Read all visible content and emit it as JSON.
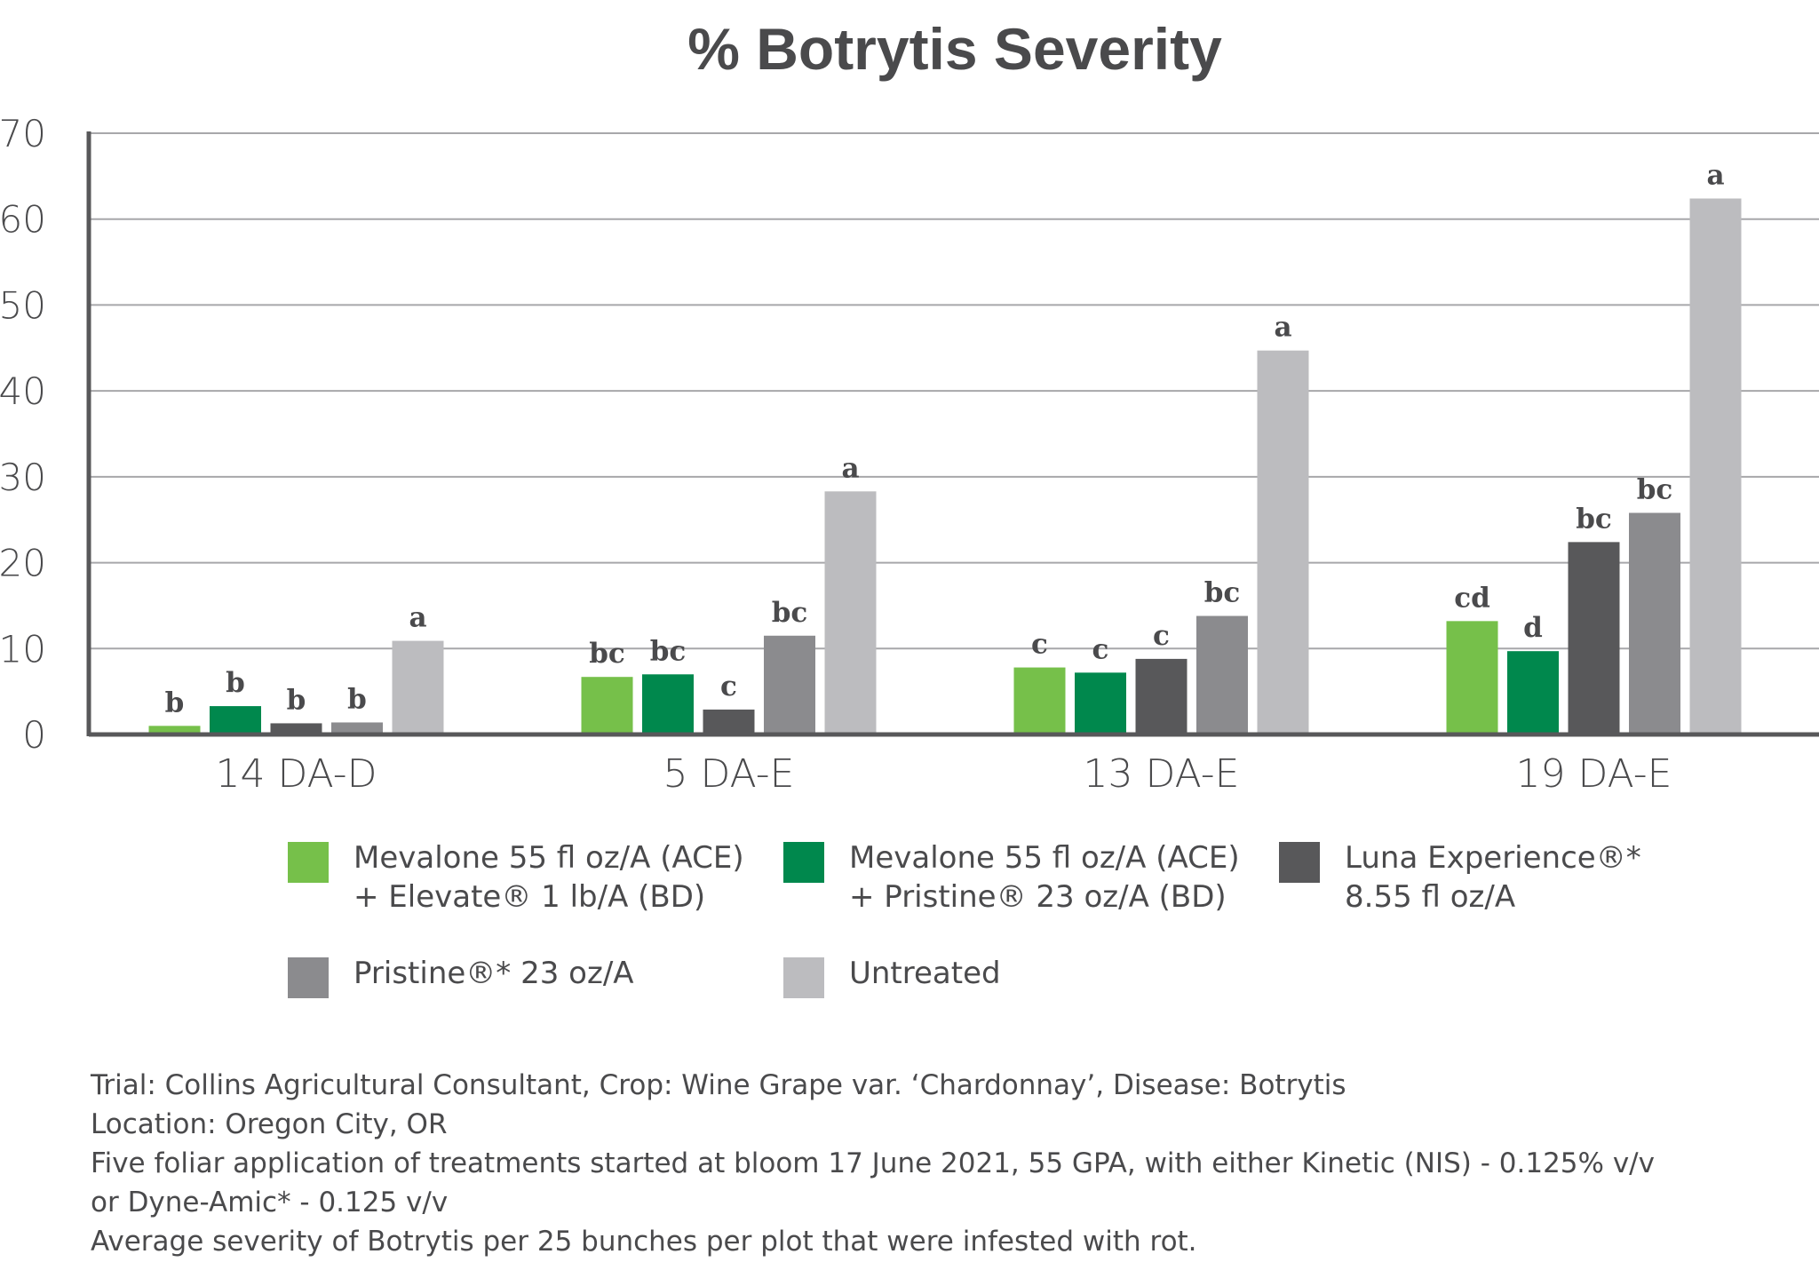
{
  "chart_data": {
    "type": "bar",
    "title": "% Botrytis Severity",
    "xlabel": "",
    "ylabel": "",
    "ylim": [
      0,
      70
    ],
    "yticks": [
      0,
      10,
      20,
      30,
      40,
      50,
      60,
      70
    ],
    "grid": true,
    "legend_position": "bottom",
    "categories": [
      "14 DA-D",
      "5 DA-E",
      "13 DA-E",
      "19 DA-E"
    ],
    "series": [
      {
        "name": "Mevalone 55 fl oz/A (ACE) + Elevate® 1 lb/A (BD)",
        "legend_lines": [
          "Mevalone 55 fl oz/A (ACE)",
          "+ Elevate® 1 lb/A (BD)"
        ],
        "color": "#76c04a",
        "values": [
          1.0,
          6.7,
          7.8,
          13.2
        ],
        "labels": [
          "b",
          "bc",
          "c",
          "cd"
        ]
      },
      {
        "name": "Mevalone 55 fl oz/A (ACE) + Pristine® 23 oz/A (BD)",
        "legend_lines": [
          "Mevalone 55 fl oz/A (ACE)",
          "+ Pristine® 23 oz/A (BD)"
        ],
        "color": "#00884d",
        "values": [
          3.3,
          7.0,
          7.2,
          9.7
        ],
        "labels": [
          "b",
          "bc",
          "c",
          "d"
        ]
      },
      {
        "name": "Luna Experience®* 8.55 fl oz/A",
        "legend_lines": [
          "Luna Experience®*",
          "8.55 fl oz/A"
        ],
        "color": "#58585a",
        "values": [
          1.3,
          2.9,
          8.8,
          22.4
        ],
        "labels": [
          "b",
          "c",
          "c",
          "bc"
        ]
      },
      {
        "name": "Pristine®* 23 oz/A",
        "legend_lines": [
          "Pristine®* 23 oz/A"
        ],
        "color": "#8b8b8e",
        "values": [
          1.4,
          11.5,
          13.8,
          25.8
        ],
        "labels": [
          "b",
          "bc",
          "bc",
          "bc"
        ]
      },
      {
        "name": "Untreated",
        "legend_lines": [
          "Untreated"
        ],
        "color": "#bcbcbf",
        "values": [
          10.9,
          28.3,
          44.7,
          62.4
        ],
        "labels": [
          "a",
          "a",
          "a",
          "a"
        ]
      }
    ]
  },
  "notes": [
    "Trial: Collins Agricultural Consultant, Crop: Wine Grape var. ‘Chardonnay’, Disease: Botrytis",
    "Location: Oregon City, OR",
    "Five foliar application of treatments started at bloom 17 June 2021, 55 GPA, with either Kinetic (NIS) - 0.125% v/v",
    "or Dyne-Amic* - 0.125 v/v",
    "Average severity of Botrytis per 25 bunches per plot that were infested with rot."
  ]
}
